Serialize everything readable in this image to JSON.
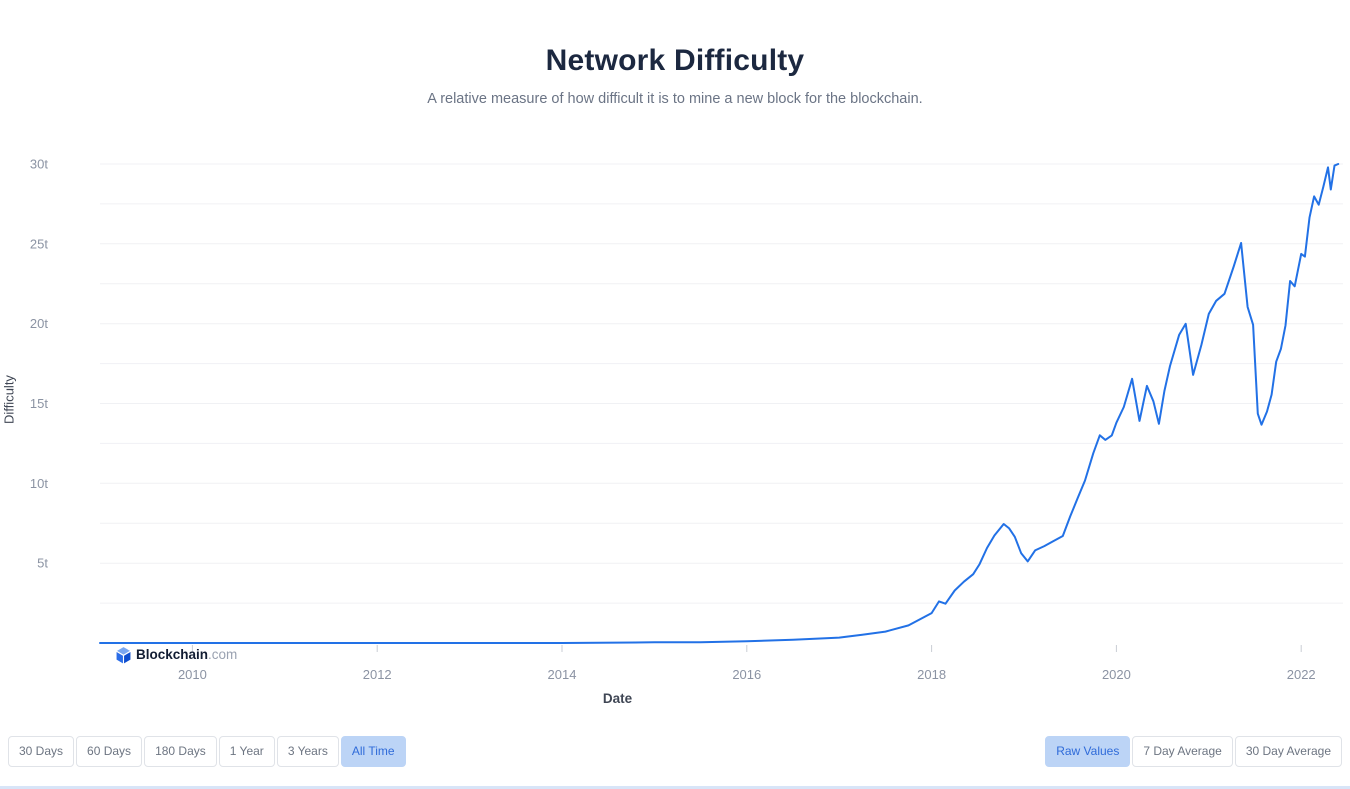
{
  "header": {
    "title": "Network Difficulty",
    "subtitle": "A relative measure of how difficult it is to mine a new block for the blockchain."
  },
  "logo": {
    "name": "Blockchain",
    "suffix": ".com"
  },
  "colors": {
    "accent_line": "#2271e6",
    "active_button_bg": "#bcd4f6",
    "active_button_text": "#2f6bd9"
  },
  "chart_data": {
    "type": "line",
    "title": "Network Difficulty",
    "subtitle": "A relative measure of how difficult it is to mine a new block for the blockchain.",
    "xlabel": "Date",
    "ylabel": "Difficulty",
    "unit": "t (trillions)",
    "grid": "horizontal",
    "legend": false,
    "xlim": [
      2009.0,
      2022.42
    ],
    "ylim": [
      0,
      30.5
    ],
    "x_ticks": [
      {
        "value": 2010,
        "label": "2010"
      },
      {
        "value": 2012,
        "label": "2012"
      },
      {
        "value": 2014,
        "label": "2014"
      },
      {
        "value": 2016,
        "label": "2016"
      },
      {
        "value": 2018,
        "label": "2018"
      },
      {
        "value": 2020,
        "label": "2020"
      },
      {
        "value": 2022,
        "label": "2022"
      }
    ],
    "y_ticks": [
      {
        "value": 5,
        "label": "5t"
      },
      {
        "value": 10,
        "label": "10t"
      },
      {
        "value": 15,
        "label": "15t"
      },
      {
        "value": 20,
        "label": "20t"
      },
      {
        "value": 25,
        "label": "25t"
      },
      {
        "value": 30,
        "label": "30t"
      }
    ],
    "line_color": "#2271e6",
    "series": [
      {
        "name": "Network Difficulty (trillions)",
        "points": [
          [
            2009.0,
            1e-12
          ],
          [
            2010.0,
            1.2e-12
          ],
          [
            2011.0,
            2.5e-08
          ],
          [
            2012.0,
            1.2e-06
          ],
          [
            2013.0,
            3.2e-06
          ],
          [
            2014.0,
            0.0018
          ],
          [
            2015.0,
            0.0439
          ],
          [
            2015.5,
            0.0494
          ],
          [
            2016.0,
            0.1035
          ],
          [
            2016.5,
            0.2095
          ],
          [
            2017.0,
            0.336
          ],
          [
            2017.25,
            0.521
          ],
          [
            2017.5,
            0.711
          ],
          [
            2017.75,
            1.103
          ],
          [
            2018.0,
            1.873
          ],
          [
            2018.08,
            2.603
          ],
          [
            2018.15,
            2.46
          ],
          [
            2018.25,
            3.29
          ],
          [
            2018.35,
            3.84
          ],
          [
            2018.45,
            4.31
          ],
          [
            2018.52,
            4.94
          ],
          [
            2018.6,
            5.95
          ],
          [
            2018.68,
            6.73
          ],
          [
            2018.78,
            7.45
          ],
          [
            2018.84,
            7.18
          ],
          [
            2018.9,
            6.65
          ],
          [
            2018.97,
            5.62
          ],
          [
            2019.04,
            5.11
          ],
          [
            2019.12,
            5.8
          ],
          [
            2019.22,
            6.07
          ],
          [
            2019.32,
            6.39
          ],
          [
            2019.42,
            6.7
          ],
          [
            2019.5,
            7.93
          ],
          [
            2019.58,
            9.06
          ],
          [
            2019.66,
            10.18
          ],
          [
            2019.75,
            11.89
          ],
          [
            2019.82,
            13.01
          ],
          [
            2019.88,
            12.72
          ],
          [
            2019.95,
            13.0
          ],
          [
            2020.0,
            13.8
          ],
          [
            2020.08,
            14.78
          ],
          [
            2020.17,
            16.55
          ],
          [
            2020.25,
            13.91
          ],
          [
            2020.33,
            16.1
          ],
          [
            2020.4,
            15.14
          ],
          [
            2020.46,
            13.73
          ],
          [
            2020.52,
            15.78
          ],
          [
            2020.58,
            17.35
          ],
          [
            2020.68,
            19.31
          ],
          [
            2020.75,
            19.99
          ],
          [
            2020.83,
            16.79
          ],
          [
            2020.92,
            18.67
          ],
          [
            2021.0,
            20.61
          ],
          [
            2021.08,
            21.43
          ],
          [
            2021.17,
            21.87
          ],
          [
            2021.27,
            23.58
          ],
          [
            2021.35,
            25.05
          ],
          [
            2021.42,
            21.05
          ],
          [
            2021.48,
            19.93
          ],
          [
            2021.53,
            14.36
          ],
          [
            2021.57,
            13.67
          ],
          [
            2021.63,
            14.5
          ],
          [
            2021.68,
            15.56
          ],
          [
            2021.73,
            17.62
          ],
          [
            2021.78,
            18.42
          ],
          [
            2021.83,
            19.89
          ],
          [
            2021.88,
            22.67
          ],
          [
            2021.93,
            22.34
          ],
          [
            2022.0,
            24.37
          ],
          [
            2022.04,
            24.2
          ],
          [
            2022.09,
            26.64
          ],
          [
            2022.14,
            27.97
          ],
          [
            2022.19,
            27.45
          ],
          [
            2022.24,
            28.59
          ],
          [
            2022.29,
            29.79
          ],
          [
            2022.32,
            28.4
          ],
          [
            2022.36,
            29.9
          ],
          [
            2022.4,
            30.0
          ]
        ]
      }
    ]
  },
  "controls": {
    "time_ranges": [
      {
        "label": "30 Days",
        "active": false
      },
      {
        "label": "60 Days",
        "active": false
      },
      {
        "label": "180 Days",
        "active": false
      },
      {
        "label": "1 Year",
        "active": false
      },
      {
        "label": "3 Years",
        "active": false
      },
      {
        "label": "All Time",
        "active": true
      }
    ],
    "value_modes": [
      {
        "label": "Raw Values",
        "active": true
      },
      {
        "label": "7 Day Average",
        "active": false
      },
      {
        "label": "30 Day Average",
        "active": false
      }
    ]
  }
}
